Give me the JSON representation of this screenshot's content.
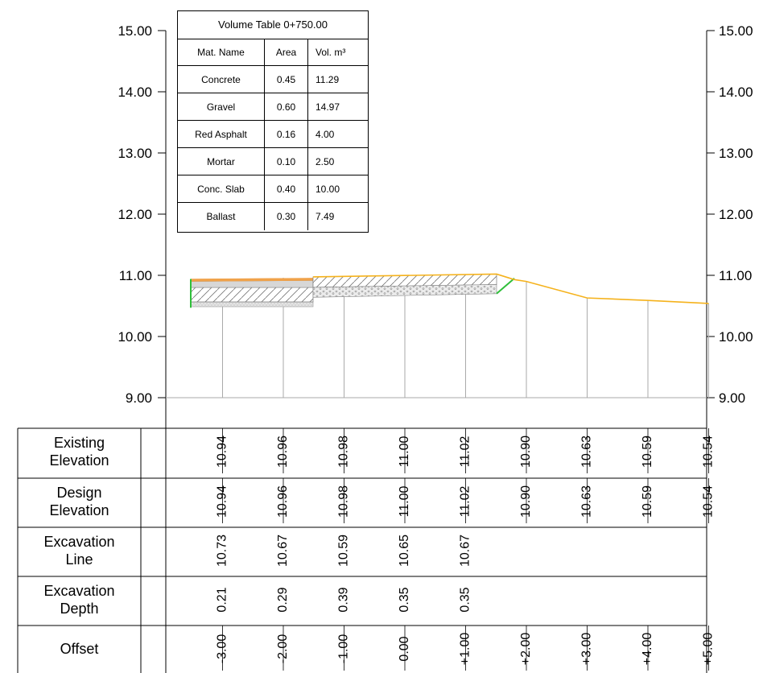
{
  "volume_table": {
    "title": "Volume Table 0+750.00",
    "headers": [
      "Mat. Name",
      "Area",
      "Vol. m³"
    ],
    "rows": [
      {
        "name": "Concrete",
        "area": "0.45",
        "vol": "11.29"
      },
      {
        "name": "Gravel",
        "area": "0.60",
        "vol": "14.97"
      },
      {
        "name": "Red Asphalt",
        "area": "0.16",
        "vol": "4.00"
      },
      {
        "name": "Mortar",
        "area": "0.10",
        "vol": "2.50"
      },
      {
        "name": "Conc. Slab",
        "area": "0.40",
        "vol": "10.00"
      },
      {
        "name": "Ballast",
        "area": "0.30",
        "vol": "7.49"
      }
    ]
  },
  "axis": {
    "elevation_labels": [
      "15.00",
      "14.00",
      "13.00",
      "12.00",
      "11.00",
      "10.00",
      "9.00"
    ],
    "elevation_values": [
      15,
      14,
      13,
      12,
      11,
      10,
      9
    ]
  },
  "colors": {
    "ground_line": "#f5b21c",
    "side_slope": "#2fbf3a",
    "asphalt": "#f0a24a",
    "grid": "#aaaaaa"
  },
  "profile": {
    "offsets": [
      -3,
      -2,
      -1,
      0,
      1,
      2,
      3,
      4,
      5
    ],
    "existing_elevation": [
      "10.94",
      "10.96",
      "10.98",
      "11.00",
      "11.02",
      "10.90",
      "10.63",
      "10.59",
      "10.54"
    ],
    "design_elevation": [
      "10.94",
      "10.96",
      "10.98",
      "11.00",
      "11.02",
      "10.90",
      "10.63",
      "10.59",
      "10.54"
    ],
    "excavation_line": [
      "10.73",
      "10.67",
      "10.59",
      "10.65",
      "10.67"
    ],
    "excavation_depth": [
      "0.21",
      "0.29",
      "0.39",
      "0.35",
      "0.35"
    ],
    "offset_labels": [
      "-3.00",
      "-2.00",
      "-1.00",
      "0.00",
      "+1.00",
      "+2.00",
      "+3.00",
      "+4.00",
      "+5.00"
    ]
  },
  "bands": [
    {
      "line1": "Existing",
      "line2": "Elevation"
    },
    {
      "line1": "Design",
      "line2": "Elevation"
    },
    {
      "line1": "Excavation",
      "line2": "Line"
    },
    {
      "line1": "Excavation",
      "line2": "Depth"
    },
    {
      "line1": "Offset",
      "line2": ""
    }
  ]
}
